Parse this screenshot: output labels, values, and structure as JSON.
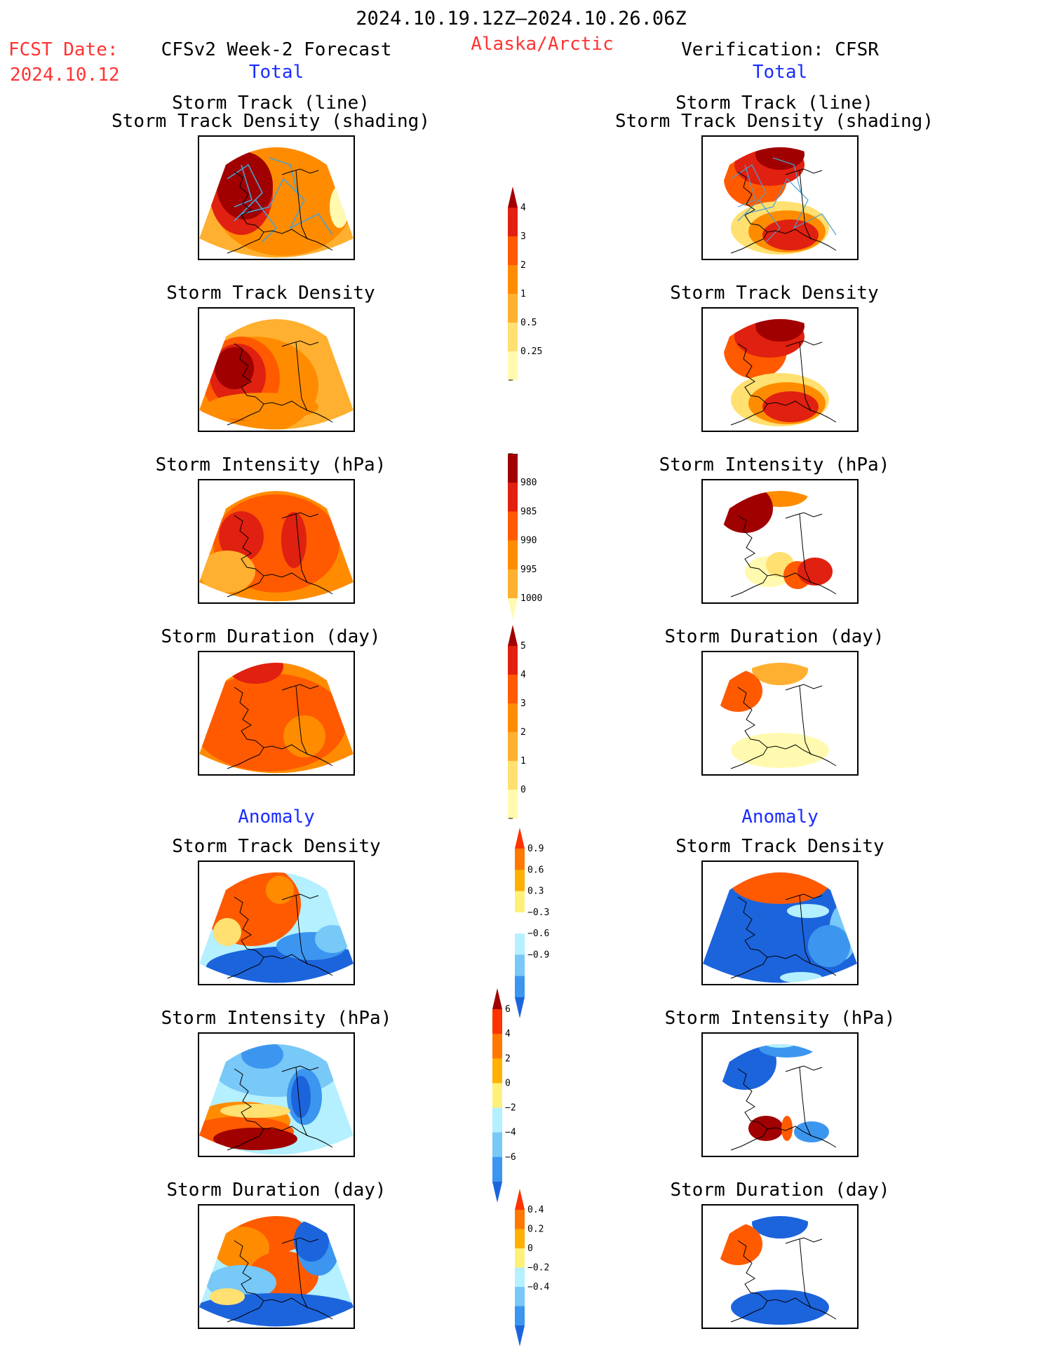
{
  "header": {
    "period": "2024.10.19.12Z–2024.10.26.06Z",
    "fcst_label": "FCST Date:",
    "fcst_date": "2024.10.12",
    "region": "Alaska/Arctic",
    "left_title": "CFSv2 Week-2 Forecast",
    "right_title": "Verification: CFSR",
    "left_sub": "Total",
    "right_sub": "Total",
    "left_anomaly": "Anomaly",
    "right_anomaly": "Anomaly"
  },
  "panels": {
    "track_line": "Storm Track (line)",
    "track_shading": "Storm Track Density (shading)",
    "density": "Storm Track Density",
    "intensity": "Storm Intensity (hPa)",
    "duration": "Storm Duration (day)"
  },
  "colorbars": {
    "density_total": {
      "ticks": [
        "0.25",
        "0.5",
        "1",
        "2",
        "3",
        "4"
      ],
      "colors": [
        "#fffab0",
        "#ffe070",
        "#ffb030",
        "#ff8c00",
        "#ff5a00",
        "#e02010",
        "#a00000"
      ]
    },
    "intensity_total": {
      "ticks": [
        "980",
        "985",
        "990",
        "995",
        "1000"
      ],
      "colors": [
        "#a00000",
        "#e02010",
        "#ff5a00",
        "#ff8c00",
        "#ffb030",
        "#fffab0"
      ]
    },
    "duration_total": {
      "ticks": [
        "0",
        "1",
        "2",
        "3",
        "4",
        "5"
      ],
      "colors": [
        "#fffab0",
        "#ffe070",
        "#ffb030",
        "#ff8c00",
        "#ff5a00",
        "#e02010",
        "#a00000"
      ]
    },
    "density_anom": {
      "ticks": [
        "−0.9",
        "−0.6",
        "−0.3",
        "0.3",
        "0.6",
        "0.9"
      ],
      "colors": [
        "#1c64dc",
        "#3c96f0",
        "#78c8f8",
        "#b4f0ff",
        "#ffffff",
        "#fff078",
        "#ffb000",
        "#ff7800",
        "#ff3200"
      ]
    },
    "intensity_anom": {
      "ticks": [
        "−6",
        "−4",
        "−2",
        "0",
        "2",
        "4",
        "6"
      ],
      "colors": [
        "#1c64dc",
        "#3c96f0",
        "#78c8f8",
        "#b4f0ff",
        "#fff078",
        "#ffb000",
        "#ff7800",
        "#ff3200",
        "#a00000"
      ]
    },
    "duration_anom": {
      "ticks": [
        "−0.4",
        "−0.2",
        "0",
        "0.2",
        "0.4"
      ],
      "colors": [
        "#1c64dc",
        "#3c96f0",
        "#78c8f8",
        "#b4f0ff",
        "#fff078",
        "#ffb000",
        "#ff7800",
        "#ff3200"
      ]
    }
  },
  "map_colors": {
    "darkred": "#a00000",
    "red": "#e02010",
    "redorange": "#ff5a00",
    "orange": "#ff8c00",
    "lightorange": "#ffb030",
    "yellow": "#ffe070",
    "paleyellow": "#fffab0",
    "blue": "#1c64dc",
    "midblue": "#3c96f0",
    "lightblue": "#78c8f8",
    "paleblue": "#b4f0ff",
    "track": "#4aa0d0"
  }
}
